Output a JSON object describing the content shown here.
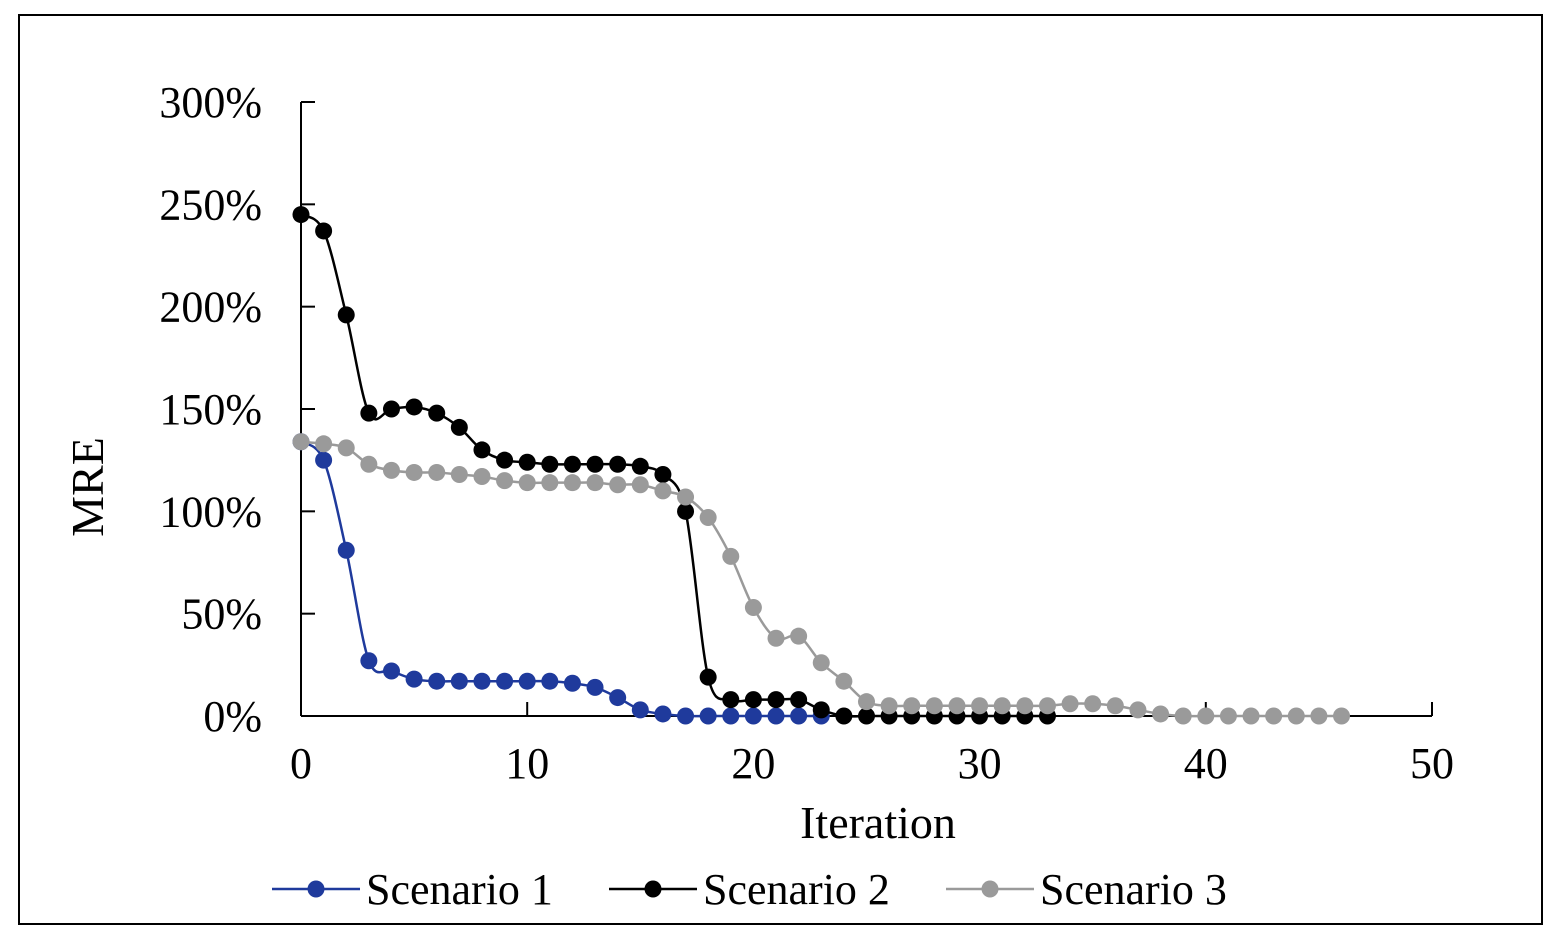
{
  "chart_data": {
    "type": "line",
    "title": "",
    "xlabel": "Iteration",
    "ylabel": "MRE",
    "xlim": [
      0,
      50
    ],
    "ylim": [
      0,
      3
    ],
    "xticks": [
      0,
      10,
      20,
      30,
      40,
      50
    ],
    "xtick_labels": [
      "0",
      "10",
      "20",
      "30",
      "40",
      "50"
    ],
    "yticks": [
      0,
      0.5,
      1.0,
      1.5,
      2.0,
      2.5,
      3.0
    ],
    "ytick_labels": [
      "0%",
      "50%",
      "100%",
      "150%",
      "200%",
      "250%",
      "300%"
    ],
    "grid": false,
    "legend_position": "bottom",
    "series": [
      {
        "name": "Scenario 1",
        "color": "#1f3a9c",
        "x": [
          0,
          1,
          2,
          3,
          4,
          5,
          6,
          7,
          8,
          9,
          10,
          11,
          12,
          13,
          14,
          15,
          16,
          17,
          18,
          19,
          20,
          21,
          22,
          23
        ],
        "values": [
          1.34,
          1.25,
          0.81,
          0.27,
          0.22,
          0.18,
          0.17,
          0.17,
          0.17,
          0.17,
          0.17,
          0.17,
          0.16,
          0.14,
          0.09,
          0.03,
          0.01,
          0.0,
          0.0,
          0.0,
          0.0,
          0.0,
          0.0,
          0.0
        ]
      },
      {
        "name": "Scenario 2",
        "color": "#000000",
        "x": [
          0,
          1,
          2,
          3,
          4,
          5,
          6,
          7,
          8,
          9,
          10,
          11,
          12,
          13,
          14,
          15,
          16,
          17,
          18,
          19,
          20,
          21,
          22,
          23,
          24,
          25,
          26,
          27,
          28,
          29,
          30,
          31,
          32,
          33
        ],
        "values": [
          2.45,
          2.37,
          1.96,
          1.48,
          1.5,
          1.51,
          1.48,
          1.41,
          1.3,
          1.25,
          1.24,
          1.23,
          1.23,
          1.23,
          1.23,
          1.22,
          1.18,
          1.0,
          0.19,
          0.08,
          0.08,
          0.08,
          0.08,
          0.03,
          0.0,
          0.0,
          0.0,
          0.0,
          0.0,
          0.0,
          0.0,
          0.0,
          0.0,
          0.0
        ]
      },
      {
        "name": "Scenario 3",
        "color": "#9a9a9a",
        "x": [
          0,
          1,
          2,
          3,
          4,
          5,
          6,
          7,
          8,
          9,
          10,
          11,
          12,
          13,
          14,
          15,
          16,
          17,
          18,
          19,
          20,
          21,
          22,
          23,
          24,
          25,
          26,
          27,
          28,
          29,
          30,
          31,
          32,
          33,
          34,
          35,
          36,
          37,
          38,
          39,
          40,
          41,
          42,
          43,
          44,
          45,
          46
        ],
        "values": [
          1.34,
          1.33,
          1.31,
          1.23,
          1.2,
          1.19,
          1.19,
          1.18,
          1.17,
          1.15,
          1.14,
          1.14,
          1.14,
          1.14,
          1.13,
          1.13,
          1.1,
          1.07,
          0.97,
          0.78,
          0.53,
          0.38,
          0.39,
          0.26,
          0.17,
          0.07,
          0.05,
          0.05,
          0.05,
          0.05,
          0.05,
          0.05,
          0.05,
          0.05,
          0.06,
          0.06,
          0.05,
          0.03,
          0.01,
          0.0,
          0.0,
          0.0,
          0.0,
          0.0,
          0.0,
          0.0,
          0.0
        ]
      }
    ]
  }
}
